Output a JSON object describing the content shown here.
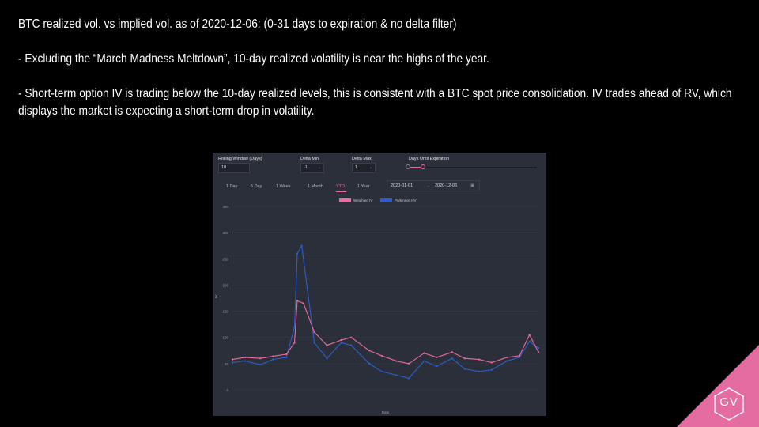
{
  "slide": {
    "title": "BTC realized vol. vs implied vol. as of 2020-12-06: (0-31 days to expiration & no delta filter)",
    "bullet1": "- Excluding the “March Madness Meltdown”, 10-day realized volatility is near the highs of the year.",
    "bullet2": "- Short-term option IV is trading below the 10-day realized levels, this is consistent with a BTC spot price consolidation. IV trades ahead of RV, which displays the market is expecting a short-term drop in volatility."
  },
  "controls": {
    "rolling_window_label": "Rolling Window (Days)",
    "rolling_window_value": "10",
    "delta_min_label": "Delta Min",
    "delta_min_value": "-1",
    "delta_max_label": "Delta Max",
    "delta_max_value": "1",
    "days_until_expiration_label": "Days Until Expiration",
    "days_until_expiration_range": [
      0,
      31
    ],
    "tabs": [
      "1 Day",
      "5 Day",
      "1 Week",
      "1 Month",
      "YTD",
      "1 Year"
    ],
    "active_tab": "YTD",
    "date_start": "2020-01-01",
    "date_sep": "→",
    "date_end": "2020-12-06"
  },
  "chart_data": {
    "type": "line",
    "title": "",
    "xlabel": "Date",
    "ylabel": "IV",
    "ylim": [
      0,
      350
    ],
    "yticks": [
      0,
      50,
      100,
      150,
      200,
      250,
      300,
      350
    ],
    "legend": "top-center",
    "x_range": [
      "2020-01-01",
      "2020-12-06"
    ],
    "series": [
      {
        "name": "Weighted IV",
        "color": "#f06aa0",
        "x": [
          "2020-01-01",
          "2020-01-15",
          "2020-02-01",
          "2020-02-15",
          "2020-03-01",
          "2020-03-10",
          "2020-03-13",
          "2020-03-20",
          "2020-04-01",
          "2020-04-15",
          "2020-05-01",
          "2020-05-12",
          "2020-06-01",
          "2020-06-15",
          "2020-07-01",
          "2020-07-15",
          "2020-08-01",
          "2020-08-15",
          "2020-09-01",
          "2020-09-15",
          "2020-10-01",
          "2020-10-15",
          "2020-11-01",
          "2020-11-15",
          "2020-11-26",
          "2020-12-06"
        ],
        "values": [
          58,
          62,
          60,
          64,
          68,
          90,
          170,
          165,
          110,
          85,
          95,
          100,
          75,
          65,
          55,
          50,
          70,
          62,
          72,
          60,
          58,
          52,
          62,
          65,
          105,
          72
        ]
      },
      {
        "name": "Parkinson HV",
        "color": "#2b5fcf",
        "x": [
          "2020-01-01",
          "2020-01-15",
          "2020-02-01",
          "2020-02-15",
          "2020-03-01",
          "2020-03-10",
          "2020-03-13",
          "2020-03-18",
          "2020-04-01",
          "2020-04-15",
          "2020-05-01",
          "2020-05-12",
          "2020-06-01",
          "2020-06-15",
          "2020-07-01",
          "2020-07-15",
          "2020-08-01",
          "2020-08-15",
          "2020-09-01",
          "2020-09-15",
          "2020-10-01",
          "2020-10-15",
          "2020-11-01",
          "2020-11-15",
          "2020-11-26",
          "2020-12-06"
        ],
        "values": [
          52,
          55,
          48,
          58,
          62,
          120,
          260,
          275,
          90,
          60,
          90,
          85,
          50,
          35,
          28,
          22,
          55,
          45,
          60,
          40,
          35,
          38,
          55,
          62,
          92,
          80
        ]
      }
    ]
  },
  "branding": {
    "logo_text": "GV",
    "accent": "#e56ca0"
  }
}
